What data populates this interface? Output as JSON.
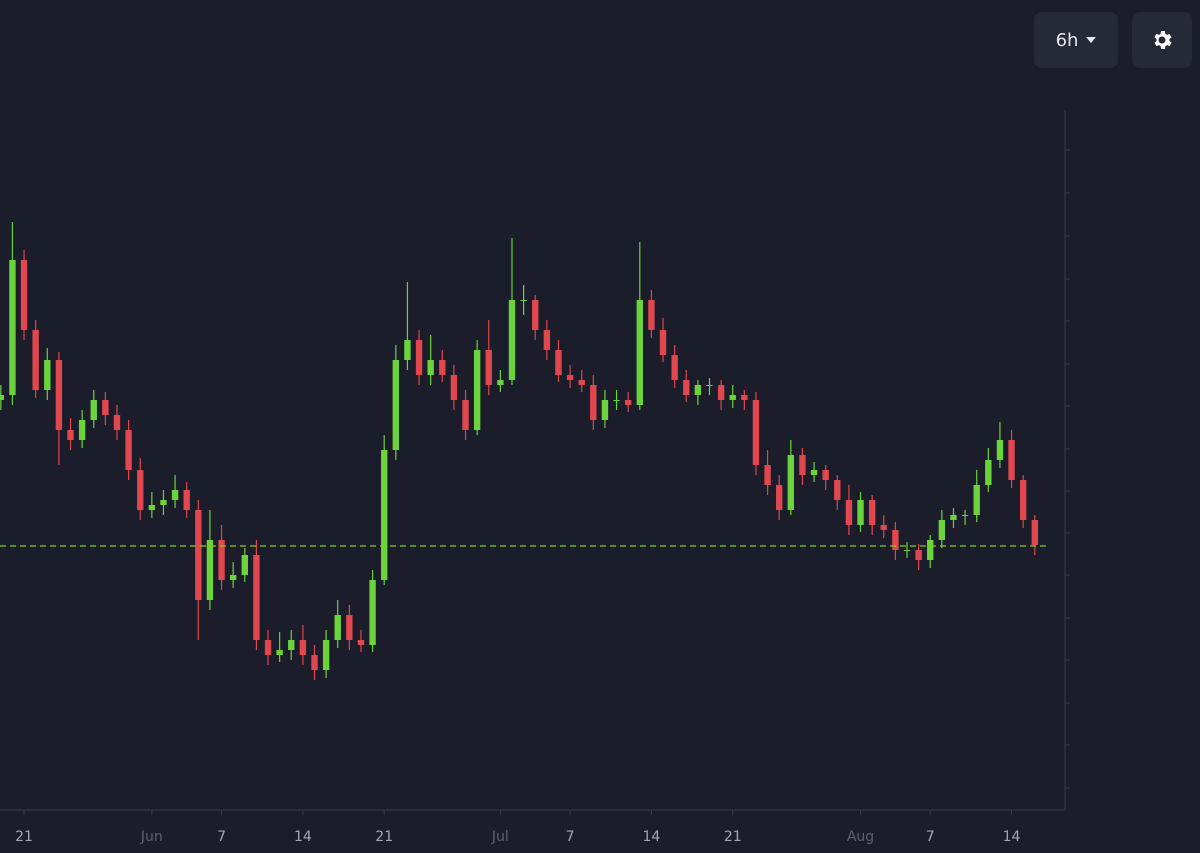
{
  "controls": {
    "interval": "6h"
  },
  "chart_data": {
    "type": "candlestick",
    "x": [
      -2,
      -1,
      0,
      1,
      2,
      3,
      4,
      5,
      6,
      7,
      8,
      9,
      10,
      11,
      12,
      13,
      14,
      15,
      16,
      17,
      18,
      19,
      20,
      21,
      22,
      23,
      24,
      25,
      26,
      27,
      28,
      29,
      30,
      31,
      32,
      33,
      34,
      35,
      36,
      37,
      38,
      39,
      40,
      41,
      42,
      43,
      44,
      45,
      46,
      47,
      48,
      49,
      50,
      51,
      52,
      53,
      54,
      55,
      56,
      57,
      58,
      59,
      60,
      61,
      62,
      63,
      64,
      65,
      66,
      67,
      68,
      69,
      70,
      71,
      72,
      73,
      74,
      75,
      76,
      77,
      78,
      79,
      80,
      81,
      82,
      83,
      84,
      85,
      86,
      87
    ],
    "open": [
      410,
      415,
      550,
      480,
      420,
      450,
      380,
      370,
      390,
      410,
      395,
      380,
      340,
      300,
      305,
      310,
      320,
      300,
      210,
      270,
      230,
      235,
      255,
      170,
      155,
      160,
      170,
      155,
      140,
      170,
      195,
      170,
      165,
      230,
      360,
      450,
      470,
      435,
      450,
      435,
      410,
      380,
      460,
      425,
      430,
      510,
      510,
      480,
      460,
      435,
      430,
      425,
      390,
      410,
      410,
      405,
      510,
      480,
      455,
      430,
      415,
      425,
      425,
      410,
      415,
      410,
      345,
      325,
      300,
      355,
      335,
      340,
      330,
      310,
      285,
      310,
      285,
      280,
      260,
      260,
      250,
      270,
      290,
      295,
      295,
      325,
      350,
      370,
      330,
      290
    ],
    "high": [
      425,
      588,
      560,
      490,
      462,
      458,
      392,
      400,
      420,
      418,
      405,
      390,
      352,
      318,
      320,
      335,
      328,
      310,
      300,
      285,
      248,
      262,
      270,
      180,
      178,
      180,
      185,
      165,
      180,
      210,
      205,
      180,
      240,
      375,
      465,
      528,
      480,
      475,
      460,
      445,
      420,
      470,
      490,
      440,
      572,
      525,
      515,
      490,
      470,
      445,
      440,
      435,
      420,
      420,
      418,
      568,
      520,
      492,
      465,
      440,
      430,
      432,
      430,
      425,
      420,
      418,
      360,
      335,
      370,
      362,
      348,
      345,
      335,
      325,
      318,
      315,
      295,
      288,
      268,
      266,
      275,
      300,
      302,
      300,
      340,
      362,
      388,
      380,
      335,
      295
    ],
    "low": [
      400,
      405,
      470,
      412,
      410,
      345,
      360,
      362,
      382,
      385,
      370,
      330,
      290,
      292,
      295,
      302,
      292,
      170,
      200,
      220,
      222,
      228,
      160,
      145,
      148,
      150,
      145,
      130,
      132,
      162,
      160,
      158,
      158,
      225,
      350,
      440,
      425,
      425,
      428,
      400,
      370,
      375,
      415,
      418,
      425,
      495,
      470,
      450,
      428,
      422,
      418,
      380,
      382,
      400,
      398,
      400,
      472,
      448,
      422,
      408,
      405,
      415,
      400,
      402,
      400,
      335,
      315,
      290,
      295,
      325,
      328,
      320,
      300,
      275,
      278,
      275,
      272,
      250,
      252,
      240,
      242,
      262,
      282,
      285,
      288,
      318,
      342,
      322,
      282,
      255
    ],
    "close": [
      415,
      550,
      480,
      420,
      450,
      380,
      370,
      390,
      410,
      395,
      380,
      340,
      300,
      305,
      310,
      320,
      300,
      210,
      270,
      230,
      235,
      255,
      170,
      155,
      160,
      170,
      155,
      140,
      170,
      195,
      170,
      165,
      230,
      360,
      450,
      470,
      435,
      450,
      435,
      410,
      380,
      460,
      425,
      430,
      510,
      510,
      480,
      460,
      435,
      430,
      425,
      390,
      410,
      410,
      405,
      510,
      480,
      455,
      430,
      415,
      425,
      425,
      410,
      415,
      410,
      345,
      325,
      300,
      355,
      335,
      340,
      330,
      310,
      285,
      310,
      285,
      280,
      260,
      260,
      250,
      270,
      290,
      295,
      295,
      325,
      350,
      370,
      330,
      290,
      265
    ],
    "up_color": "#6cd33c",
    "down_color": "#e0474f",
    "price_line": 264,
    "price_line_color": "#7ed321",
    "xlim": [
      -2.07,
      89.6
    ],
    "xticks": [
      {
        "value": 0,
        "label": "21"
      },
      {
        "value": 11,
        "label": "Jun"
      },
      {
        "value": 17,
        "label": "7"
      },
      {
        "value": 24,
        "label": "14"
      },
      {
        "value": 31,
        "label": "21"
      },
      {
        "value": 41,
        "label": "Jul"
      },
      {
        "value": 47,
        "label": "7"
      },
      {
        "value": 54,
        "label": "14"
      },
      {
        "value": 61,
        "label": "21"
      },
      {
        "value": 72,
        "label": "Aug"
      },
      {
        "value": 78,
        "label": "7"
      },
      {
        "value": 85,
        "label": "14"
      }
    ],
    "ylim": [
      0,
      700
    ],
    "yticks": [
      22,
      65,
      107,
      150,
      192,
      235,
      277,
      319,
      361,
      404,
      446,
      489,
      531,
      574,
      617,
      660
    ]
  }
}
